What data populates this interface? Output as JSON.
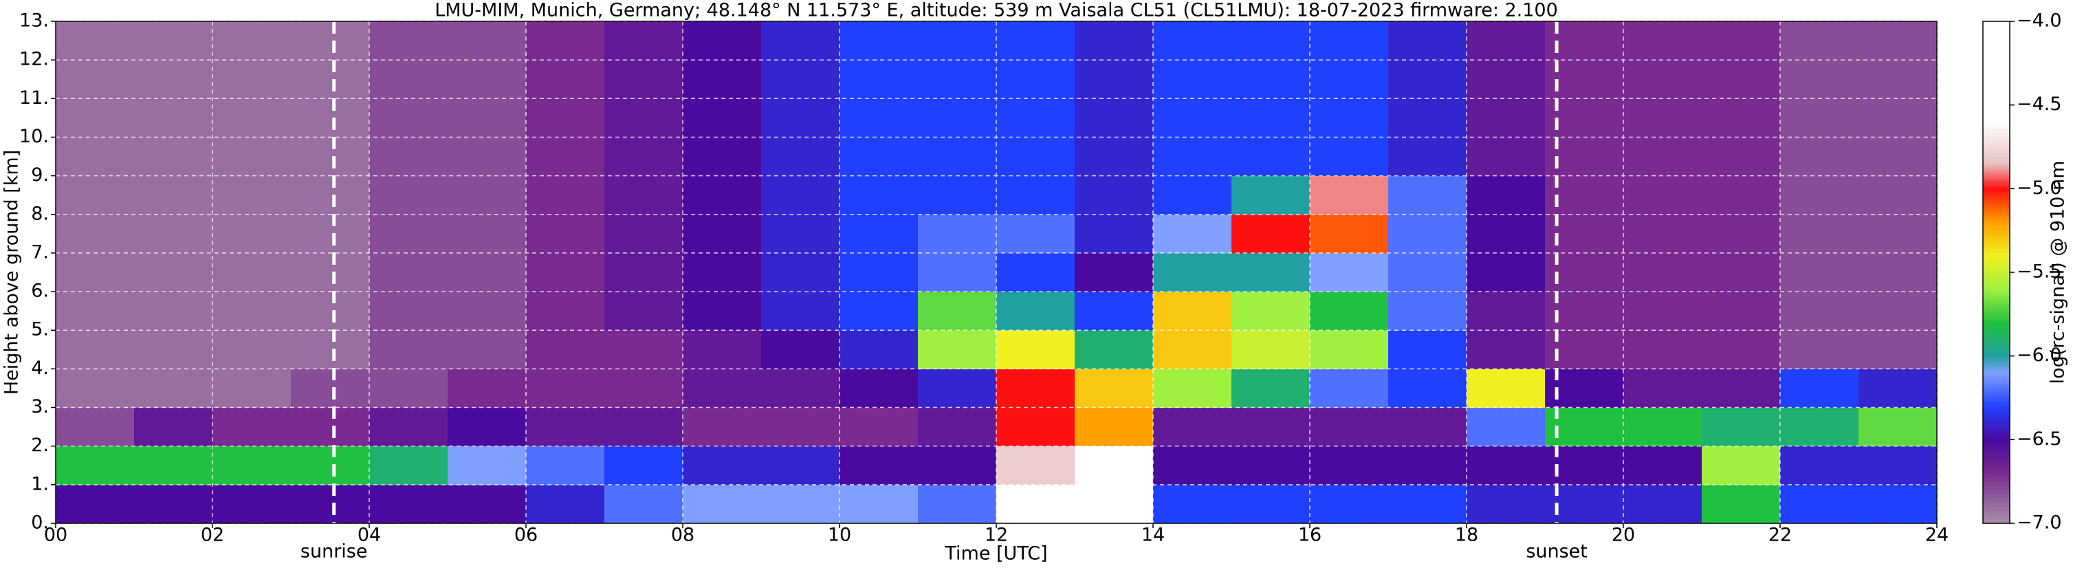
{
  "chart_data": {
    "type": "heatmap",
    "title": "LMU-MIM, Munich, Germany; 48.148° N 11.573° E, altitude: 539 m    Vaisala CL51 (CL51LMU): 18-07-2023    firmware: 2.100",
    "x_label": "Time [UTC]",
    "y_label": "Height above ground [km]",
    "colorbar_label": "log(rc-signal) @ 910 nm",
    "x": [
      0,
      1,
      2,
      3,
      4,
      5,
      6,
      7,
      8,
      9,
      10,
      11,
      12,
      13,
      14,
      15,
      16,
      17,
      18,
      19,
      20,
      21,
      22,
      23,
      24
    ],
    "y": [
      0,
      1,
      2,
      3,
      4,
      5,
      6,
      7,
      8,
      9,
      10,
      11,
      12,
      13
    ],
    "z": [
      [
        -6.5,
        -6.5,
        -6.5,
        -6.5,
        -6.5,
        -6.5,
        -6.4,
        -6.2,
        -6.1,
        -6.1,
        -6.1,
        -6.2,
        -4.6,
        -4.3,
        -6.3,
        -6.3,
        -6.3,
        -6.3,
        -6.4,
        -6.4,
        -6.4,
        -5.8,
        -6.3,
        -6.3
      ],
      [
        -5.8,
        -5.8,
        -5.8,
        -5.8,
        -5.9,
        -6.1,
        -6.2,
        -6.3,
        -6.4,
        -6.4,
        -6.5,
        -6.5,
        -4.8,
        -4.5,
        -6.5,
        -6.5,
        -6.5,
        -6.5,
        -6.5,
        -6.5,
        -6.5,
        -5.6,
        -6.4,
        -6.4
      ],
      [
        -6.8,
        -6.6,
        -6.7,
        -6.7,
        -6.6,
        -6.5,
        -6.6,
        -6.6,
        -6.7,
        -6.7,
        -6.7,
        -6.6,
        -5.0,
        -5.2,
        -6.6,
        -6.6,
        -6.6,
        -6.6,
        -6.2,
        -5.8,
        -5.8,
        -5.9,
        -5.9,
        -5.7
      ],
      [
        -6.9,
        -6.9,
        -6.9,
        -6.8,
        -6.8,
        -6.7,
        -6.7,
        -6.7,
        -6.6,
        -6.6,
        -6.5,
        -6.4,
        -5.0,
        -5.3,
        -5.6,
        -5.9,
        -6.2,
        -6.3,
        -5.4,
        -6.5,
        -6.6,
        -6.6,
        -6.3,
        -6.4
      ],
      [
        -6.9,
        -6.9,
        -6.9,
        -6.9,
        -6.8,
        -6.8,
        -6.7,
        -6.7,
        -6.6,
        -6.5,
        -6.4,
        -5.6,
        -5.4,
        -5.9,
        -5.3,
        -5.5,
        -5.6,
        -6.3,
        -6.6,
        -6.7,
        -6.7,
        -6.7,
        -6.8,
        -6.8
      ],
      [
        -6.9,
        -6.9,
        -6.9,
        -6.9,
        -6.8,
        -6.8,
        -6.7,
        -6.6,
        -6.5,
        -6.4,
        -6.3,
        -5.7,
        -6.0,
        -6.3,
        -5.3,
        -5.6,
        -5.8,
        -6.2,
        -6.6,
        -6.7,
        -6.7,
        -6.7,
        -6.8,
        -6.8
      ],
      [
        -6.9,
        -6.9,
        -6.9,
        -6.9,
        -6.8,
        -6.8,
        -6.7,
        -6.6,
        -6.5,
        -6.4,
        -6.3,
        -6.2,
        -6.3,
        -6.5,
        -6.0,
        -6.0,
        -6.1,
        -6.2,
        -6.5,
        -6.7,
        -6.7,
        -6.7,
        -6.8,
        -6.8
      ],
      [
        -6.9,
        -6.9,
        -6.9,
        -6.9,
        -6.8,
        -6.8,
        -6.7,
        -6.6,
        -6.5,
        -6.4,
        -6.3,
        -6.2,
        -6.2,
        -6.4,
        -6.1,
        -5.0,
        -5.1,
        -6.2,
        -6.5,
        -6.7,
        -6.7,
        -6.7,
        -6.8,
        -6.8
      ],
      [
        -6.9,
        -6.9,
        -6.9,
        -6.9,
        -6.8,
        -6.8,
        -6.7,
        -6.6,
        -6.5,
        -6.4,
        -6.3,
        -6.3,
        -6.3,
        -6.4,
        -6.3,
        -6.0,
        -4.9,
        -6.2,
        -6.5,
        -6.7,
        -6.7,
        -6.7,
        -6.8,
        -6.8
      ],
      [
        -6.9,
        -6.9,
        -6.9,
        -6.9,
        -6.8,
        -6.8,
        -6.7,
        -6.6,
        -6.5,
        -6.4,
        -6.3,
        -6.3,
        -6.3,
        -6.4,
        -6.3,
        -6.3,
        -6.3,
        -6.4,
        -6.6,
        -6.7,
        -6.7,
        -6.7,
        -6.8,
        -6.8
      ],
      [
        -6.9,
        -6.9,
        -6.9,
        -6.9,
        -6.8,
        -6.8,
        -6.7,
        -6.6,
        -6.5,
        -6.4,
        -6.3,
        -6.3,
        -6.3,
        -6.4,
        -6.3,
        -6.3,
        -6.3,
        -6.4,
        -6.6,
        -6.7,
        -6.7,
        -6.7,
        -6.8,
        -6.8
      ],
      [
        -6.9,
        -6.9,
        -6.9,
        -6.9,
        -6.8,
        -6.8,
        -6.7,
        -6.6,
        -6.5,
        -6.4,
        -6.3,
        -6.3,
        -6.3,
        -6.4,
        -6.3,
        -6.3,
        -6.3,
        -6.4,
        -6.6,
        -6.7,
        -6.7,
        -6.7,
        -6.8,
        -6.8
      ],
      [
        -6.9,
        -6.9,
        -6.9,
        -6.9,
        -6.8,
        -6.8,
        -6.7,
        -6.6,
        -6.5,
        -6.4,
        -6.3,
        -6.3,
        -6.3,
        -6.4,
        -6.3,
        -6.3,
        -6.3,
        -6.4,
        -6.6,
        -6.7,
        -6.7,
        -6.7,
        -6.8,
        -6.8
      ]
    ],
    "colorscale": [
      [
        -7.0,
        "#a890a8"
      ],
      [
        -6.7,
        "#7a2a90"
      ],
      [
        -6.5,
        "#4a0aa0"
      ],
      [
        -6.3,
        "#2040ff"
      ],
      [
        -6.1,
        "#80a0ff"
      ],
      [
        -6.0,
        "#20a0a0"
      ],
      [
        -5.8,
        "#20c040"
      ],
      [
        -5.6,
        "#a0f040"
      ],
      [
        -5.4,
        "#f0f020"
      ],
      [
        -5.2,
        "#ffa000"
      ],
      [
        -5.0,
        "#ff1010"
      ],
      [
        -4.85,
        "#e8c0c0"
      ],
      [
        -4.6,
        "#ffffff"
      ],
      [
        -4.0,
        "#ffffff"
      ]
    ],
    "xlim": [
      0,
      24
    ],
    "ylim": [
      0,
      13
    ],
    "clim": [
      -7.0,
      -4.0
    ],
    "xticks": [
      {
        "value": 0,
        "label": "00"
      },
      {
        "value": 2,
        "label": "02"
      },
      {
        "value": 4,
        "label": "04"
      },
      {
        "value": 6,
        "label": "06"
      },
      {
        "value": 8,
        "label": "08"
      },
      10,
      12,
      14,
      16,
      18,
      20,
      22,
      24
    ],
    "yticks": [
      {
        "value": 0,
        "label": "0."
      },
      {
        "value": 1,
        "label": "1."
      },
      {
        "value": 2,
        "label": "2."
      },
      {
        "value": 3,
        "label": "3."
      },
      {
        "value": 4,
        "label": "4."
      },
      {
        "value": 5,
        "label": "5."
      },
      {
        "value": 6,
        "label": "6."
      },
      {
        "value": 7,
        "label": "7."
      },
      {
        "value": 8,
        "label": "8."
      },
      {
        "value": 9,
        "label": "9."
      },
      {
        "value": 10,
        "label": "10."
      },
      {
        "value": 11,
        "label": "11."
      },
      {
        "value": 12,
        "label": "12."
      },
      {
        "value": 13,
        "label": "13."
      }
    ],
    "cticks": [
      {
        "value": -4.0,
        "label": "−4.0"
      },
      {
        "value": -4.5,
        "label": "−4.5"
      },
      {
        "value": -5.0,
        "label": "−5.0"
      },
      {
        "value": -5.5,
        "label": "−5.5"
      },
      {
        "value": -6.0,
        "label": "−6.0"
      },
      {
        "value": -6.5,
        "label": "−6.5"
      },
      {
        "value": -7.0,
        "label": "−7.0"
      }
    ],
    "annotations": [
      {
        "x": 3.55,
        "text": "sunrise"
      },
      {
        "x": 19.15,
        "text": "sunset"
      }
    ],
    "grid": true
  }
}
